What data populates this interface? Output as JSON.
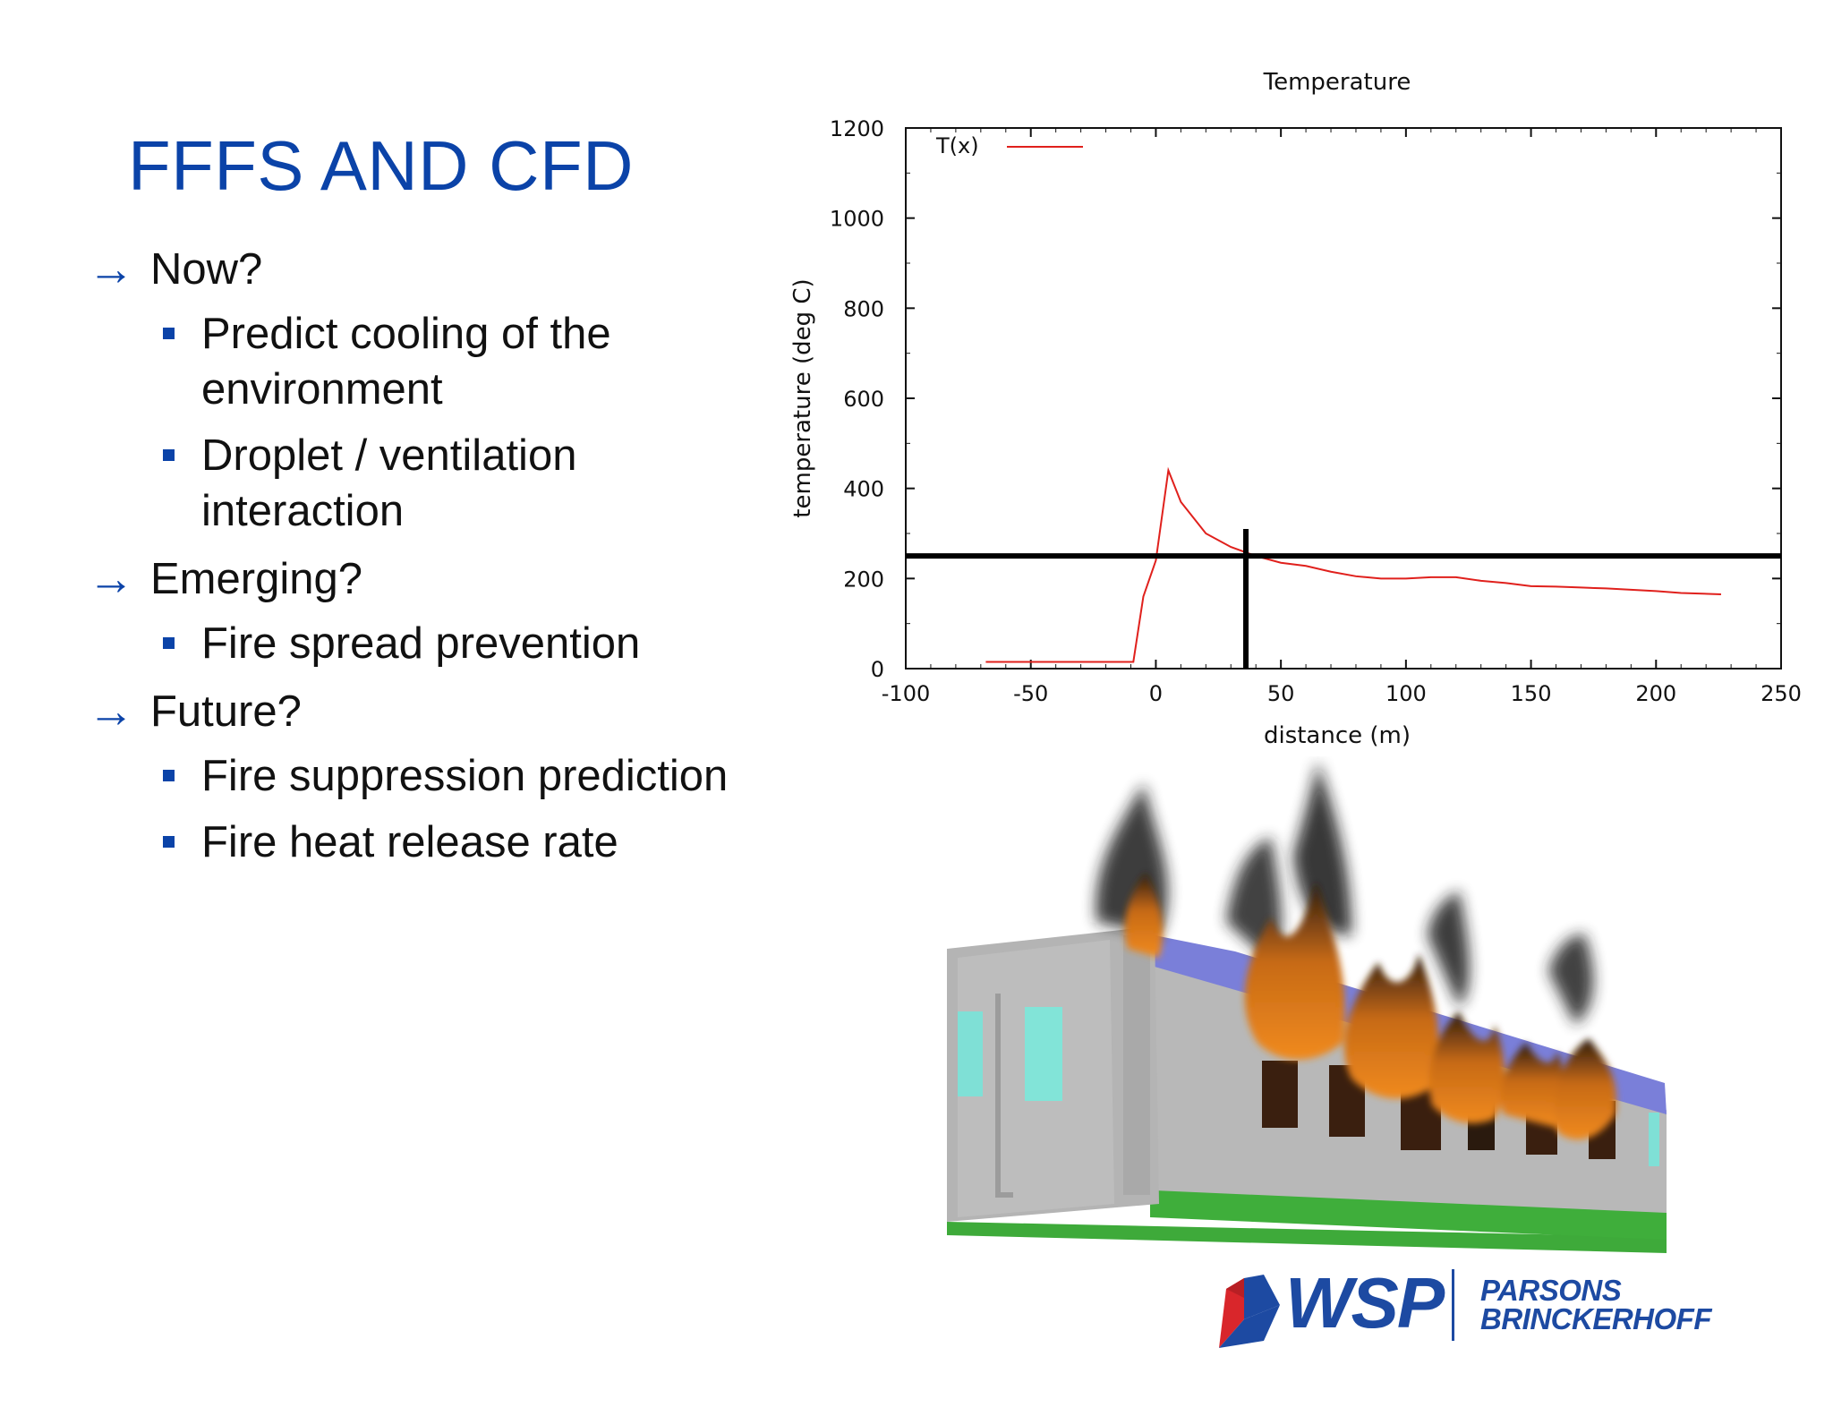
{
  "slide": {
    "title": "FFFS AND CFD",
    "bullets": [
      {
        "text": "Now?",
        "subs": [
          "Predict cooling of the environment",
          "Droplet / ventilation interaction"
        ]
      },
      {
        "text": "Emerging?",
        "subs": [
          "Fire spread prevention"
        ]
      },
      {
        "text": "Future?",
        "subs": [
          "Fire suppression prediction",
          "Fire heat release rate"
        ]
      }
    ]
  },
  "chart_data": {
    "type": "line",
    "title": "Temperature",
    "xlabel": "distance (m)",
    "ylabel": "temperature (deg C)",
    "xlim": [
      -100,
      250
    ],
    "ylim": [
      0,
      1200
    ],
    "xticks": [
      -100,
      -50,
      0,
      50,
      100,
      150,
      200,
      250
    ],
    "yticks": [
      0,
      200,
      400,
      600,
      800,
      1000,
      1200
    ],
    "legend_position": "top-left",
    "series": [
      {
        "name": "T(x)",
        "color": "#e0201c",
        "x": [
          -68,
          -9,
          -5,
          0,
          5,
          10,
          20,
          30,
          40,
          50,
          60,
          70,
          80,
          90,
          100,
          110,
          120,
          130,
          140,
          150,
          160,
          170,
          180,
          190,
          200,
          210,
          226
        ],
        "y": [
          15,
          15,
          160,
          240,
          440,
          370,
          300,
          270,
          250,
          235,
          228,
          215,
          205,
          200,
          200,
          203,
          203,
          195,
          190,
          183,
          182,
          180,
          178,
          175,
          172,
          168,
          165
        ]
      }
    ],
    "reference_lines": {
      "horizontal_y": 250,
      "vertical_x": 36,
      "vertical_top_y": 310
    }
  },
  "logo": {
    "brand": "WSP",
    "partner_line1": "PARSONS",
    "partner_line2": "BRINCKERHOFF"
  },
  "colors": {
    "title_blue": "#0b43a8",
    "bullet_blue": "#0b43a8",
    "logo_blue": "#1d4aa2",
    "logo_red": "#d9262b"
  }
}
